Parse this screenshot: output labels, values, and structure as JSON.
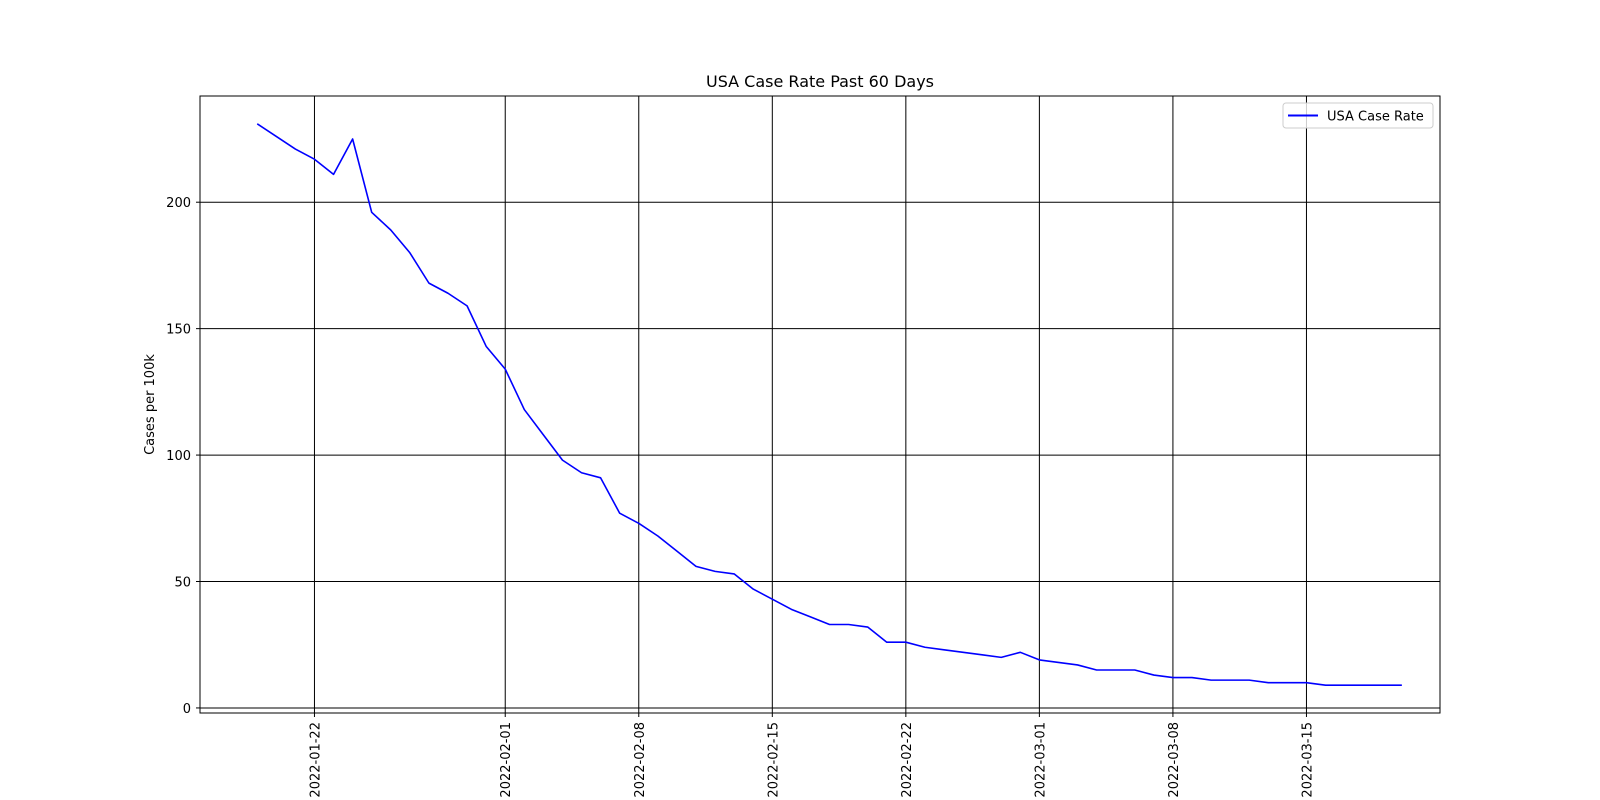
{
  "chart_data": {
    "type": "line",
    "title": "USA Case Rate Past 60 Days",
    "xlabel": "",
    "ylabel": "Cases per 100k",
    "x_start": "2022-01-19",
    "x_end": "2022-03-20",
    "xlim": [
      "2022-01-16",
      "2022-03-22"
    ],
    "ylim": [
      -2,
      242
    ],
    "yticks": [
      0,
      50,
      100,
      150,
      200
    ],
    "xticks": [
      "2022-01-22",
      "2022-02-01",
      "2022-02-08",
      "2022-02-15",
      "2022-02-22",
      "2022-03-01",
      "2022-03-08",
      "2022-03-15"
    ],
    "grid": true,
    "legend_position": "top-right",
    "series": [
      {
        "name": "USA Case Rate",
        "color": "#0000ff",
        "values": [
          231,
          226,
          221,
          217,
          211,
          225,
          196,
          189,
          180,
          168,
          164,
          159,
          143,
          134,
          118,
          108,
          98,
          93,
          91,
          77,
          73,
          68,
          62,
          56,
          54,
          53,
          47,
          43,
          39,
          36,
          33,
          33,
          32,
          26,
          26,
          24,
          23,
          22,
          21,
          20,
          22,
          19,
          18,
          17,
          15,
          15,
          15,
          13,
          12,
          12,
          11,
          11,
          11,
          10,
          10,
          10,
          9,
          9,
          9,
          9,
          9
        ]
      }
    ]
  }
}
